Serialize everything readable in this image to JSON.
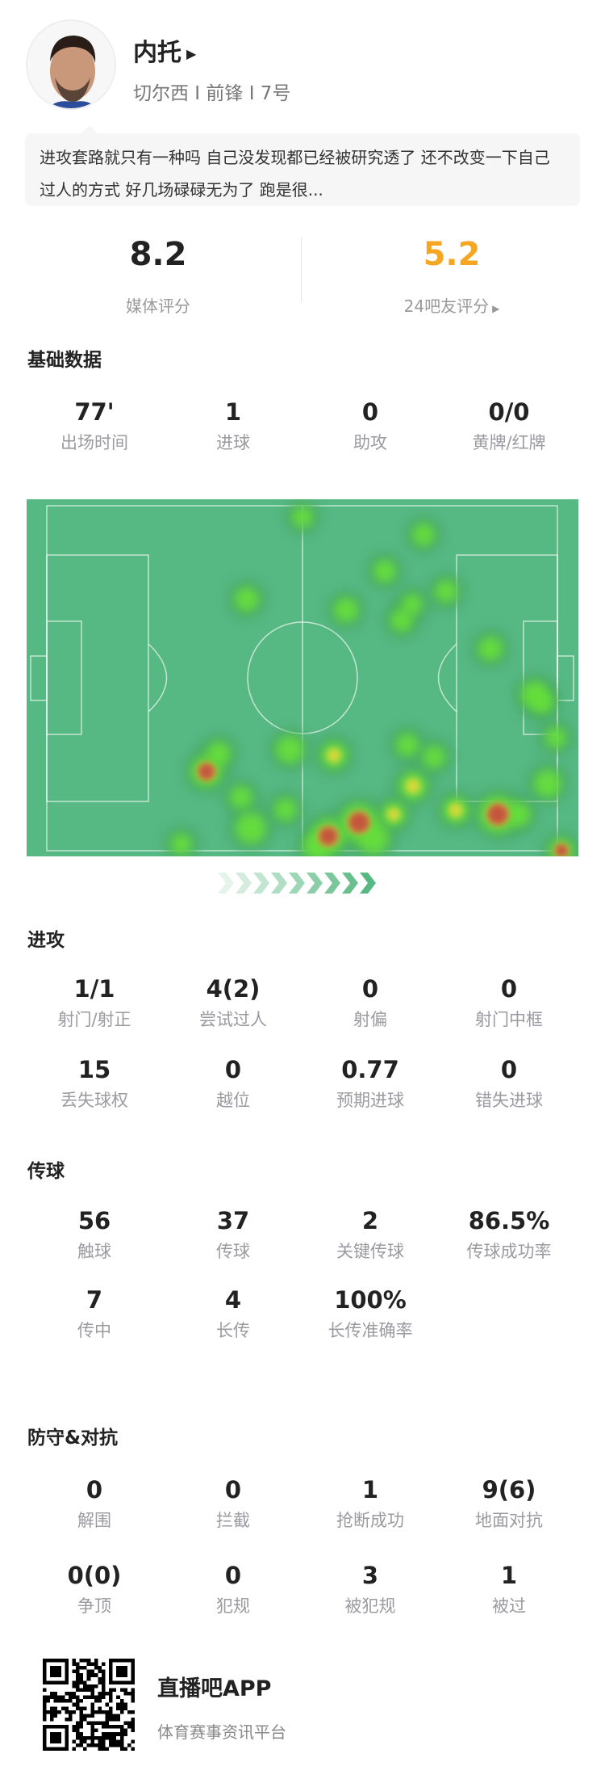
{
  "player": {
    "name": "内托",
    "team_line": "切尔西 I 前锋 I 7号",
    "comment": "进攻套路就只有一种吗 自己没发现都已经被研究透了 还不改变一下自己过人的方式 好几场碌碌无为了 跑是很..."
  },
  "ratings": {
    "media": {
      "value": "8.2",
      "label": "媒体评分"
    },
    "fans": {
      "value": "5.2",
      "label": "24吧友评分",
      "color": "#f5a623"
    }
  },
  "sections": [
    {
      "title": "基础数据",
      "rows": [
        [
          {
            "v": "77'",
            "l": "出场时间"
          },
          {
            "v": "1",
            "l": "进球"
          },
          {
            "v": "0",
            "l": "助攻"
          },
          {
            "v": "0/0",
            "l": "黄牌/红牌"
          }
        ]
      ]
    },
    {
      "title": "进攻",
      "rows": [
        [
          {
            "v": "1/1",
            "l": "射门/射正"
          },
          {
            "v": "4(2)",
            "l": "尝试过人"
          },
          {
            "v": "0",
            "l": "射偏"
          },
          {
            "v": "0",
            "l": "射门中框"
          }
        ],
        [
          {
            "v": "15",
            "l": "丢失球权"
          },
          {
            "v": "0",
            "l": "越位"
          },
          {
            "v": "0.77",
            "l": "预期进球"
          },
          {
            "v": "0",
            "l": "错失进球"
          }
        ]
      ]
    },
    {
      "title": "传球",
      "rows": [
        [
          {
            "v": "56",
            "l": "触球"
          },
          {
            "v": "37",
            "l": "传球"
          },
          {
            "v": "2",
            "l": "关键传球"
          },
          {
            "v": "86.5%",
            "l": "传球成功率"
          }
        ],
        [
          {
            "v": "7",
            "l": "传中"
          },
          {
            "v": "4",
            "l": "长传"
          },
          {
            "v": "100%",
            "l": "长传准确率"
          }
        ]
      ]
    },
    {
      "title": "防守&对抗",
      "rows": [
        [
          {
            "v": "0",
            "l": "解围"
          },
          {
            "v": "0",
            "l": "拦截"
          },
          {
            "v": "1",
            "l": "抢断成功"
          },
          {
            "v": "9(6)",
            "l": "地面对抗"
          }
        ],
        [
          {
            "v": "0(0)",
            "l": "争顶"
          },
          {
            "v": "0",
            "l": "犯规"
          },
          {
            "v": "3",
            "l": "被犯规"
          },
          {
            "v": "1",
            "l": "被过"
          }
        ]
      ]
    }
  ],
  "heatmap": {
    "pitch_color": "#56b882",
    "attack_direction": "right"
  },
  "footer": {
    "app_name": "直播吧APP",
    "tagline": "体育赛事资讯平台"
  }
}
